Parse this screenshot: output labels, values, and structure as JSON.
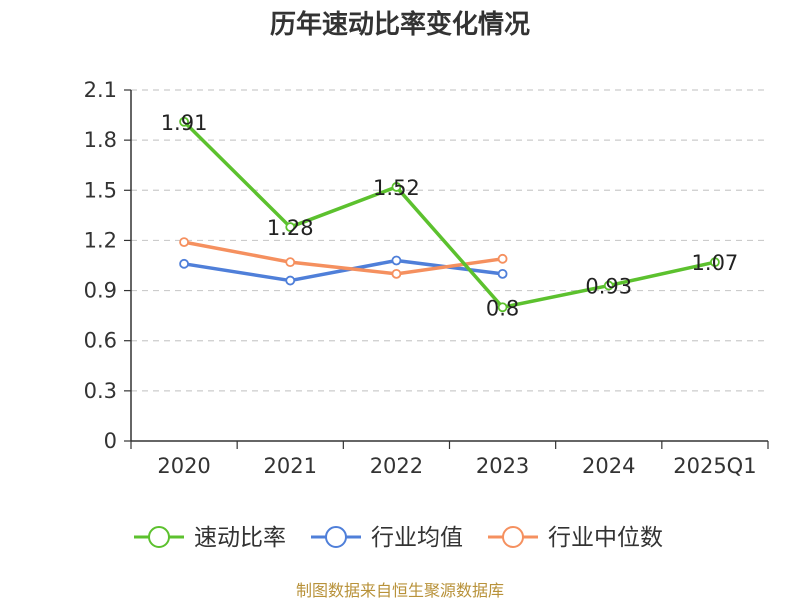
{
  "chart_data": {
    "type": "line",
    "title": "历年速动比率变化情况",
    "categories": [
      "2020",
      "2021",
      "2022",
      "2023",
      "2024",
      "2025Q1"
    ],
    "ylim": [
      0,
      2.1
    ],
    "yticks": [
      "0",
      "0.3",
      "0.6",
      "0.9",
      "1.2",
      "1.5",
      "1.8",
      "2.1"
    ],
    "grid": true,
    "legend_position": "bottom",
    "series": [
      {
        "name": "速动比率",
        "color": "#5cc12e",
        "values": [
          1.91,
          1.28,
          1.52,
          0.8,
          0.93,
          1.07
        ],
        "labels": [
          "1.91",
          "1.28",
          "1.52",
          "0.8",
          "0.93",
          "1.07"
        ],
        "show_labels": true
      },
      {
        "name": "行业均值",
        "color": "#4f7fd9",
        "values": [
          1.06,
          0.96,
          1.08,
          1.0,
          null,
          null
        ],
        "show_labels": false
      },
      {
        "name": "行业中位数",
        "color": "#f5905f",
        "values": [
          1.19,
          1.07,
          1.0,
          1.09,
          null,
          null
        ],
        "show_labels": false
      }
    ],
    "source": "制图数据来自恒生聚源数据库"
  }
}
